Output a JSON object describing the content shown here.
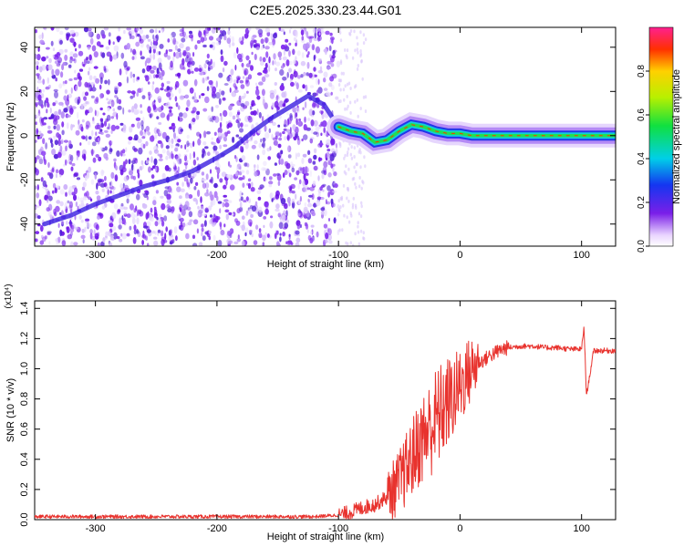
{
  "title": "C2E5.2025.330.23.44.G01",
  "chart_data": [
    {
      "type": "heatmap",
      "xlabel": "Height of straight line (km)",
      "ylabel": "Frequency (Hz)",
      "xlim": [
        -350,
        128
      ],
      "ylim": [
        -50,
        49
      ],
      "xticks": [
        "-300",
        "-200",
        "-100",
        "0",
        "100"
      ],
      "yticks": [
        "-40",
        "-20",
        "0",
        "20",
        "40"
      ],
      "colorbar": {
        "label": "Normalized spectral amplitude",
        "ticks": [
          "0.0",
          "0.2",
          "0.4",
          "0.6",
          "0.8"
        ],
        "range": [
          0,
          1
        ]
      },
      "ridge": [
        {
          "x": -342,
          "y": -40
        },
        {
          "x": -320,
          "y": -36
        },
        {
          "x": -300,
          "y": -31
        },
        {
          "x": -280,
          "y": -27
        },
        {
          "x": -260,
          "y": -23
        },
        {
          "x": -240,
          "y": -20
        },
        {
          "x": -220,
          "y": -16
        },
        {
          "x": -200,
          "y": -10
        },
        {
          "x": -185,
          "y": -5
        },
        {
          "x": -170,
          "y": 2
        },
        {
          "x": -155,
          "y": 8
        },
        {
          "x": -140,
          "y": 13
        },
        {
          "x": -125,
          "y": 18
        },
        {
          "x": -112,
          "y": 14
        },
        {
          "x": -100,
          "y": 4
        },
        {
          "x": -90,
          "y": 2
        },
        {
          "x": -80,
          "y": 1
        },
        {
          "x": -70,
          "y": -3
        },
        {
          "x": -60,
          "y": -2
        },
        {
          "x": -50,
          "y": 2
        },
        {
          "x": -40,
          "y": 5
        },
        {
          "x": -30,
          "y": 4
        },
        {
          "x": -20,
          "y": 2
        },
        {
          "x": -10,
          "y": 1
        },
        {
          "x": 0,
          "y": 1
        },
        {
          "x": 10,
          "y": 0
        },
        {
          "x": 30,
          "y": 0
        },
        {
          "x": 60,
          "y": 0
        },
        {
          "x": 100,
          "y": 0
        },
        {
          "x": 128,
          "y": 0
        }
      ]
    },
    {
      "type": "line",
      "xlabel": "Height of straight line (km)",
      "ylabel": "SNR (10 * v/v)",
      "y_multiplier": "(x10⁴)",
      "xlim": [
        -350,
        128
      ],
      "ylim": [
        0,
        1.45
      ],
      "xticks": [
        "-300",
        "-200",
        "-100",
        "0",
        "100"
      ],
      "yticks": [
        "0.0",
        "0.2",
        "0.4",
        "0.6",
        "0.8",
        "1.0",
        "1.2",
        "1.4"
      ],
      "series": [
        {
          "color": "#e8332e",
          "x": [
            -350,
            -300,
            -250,
            -200,
            -150,
            -120,
            -100,
            -90,
            -80,
            -70,
            -60,
            -50,
            -45,
            -40,
            -35,
            -30,
            -25,
            -20,
            -15,
            -10,
            -5,
            0,
            5,
            10,
            15,
            20,
            25,
            30,
            35,
            40,
            50,
            60,
            70,
            80,
            90,
            95,
            100,
            102,
            104,
            110,
            120,
            128
          ],
          "y": [
            0.02,
            0.02,
            0.02,
            0.02,
            0.02,
            0.02,
            0.03,
            0.05,
            0.08,
            0.1,
            0.15,
            0.25,
            0.32,
            0.4,
            0.48,
            0.55,
            0.6,
            0.66,
            0.72,
            0.78,
            0.82,
            0.88,
            0.95,
            1.0,
            1.04,
            1.06,
            1.09,
            1.11,
            1.13,
            1.14,
            1.15,
            1.15,
            1.14,
            1.14,
            1.13,
            1.13,
            1.13,
            1.28,
            0.82,
            1.12,
            1.12,
            1.12
          ]
        }
      ]
    }
  ]
}
